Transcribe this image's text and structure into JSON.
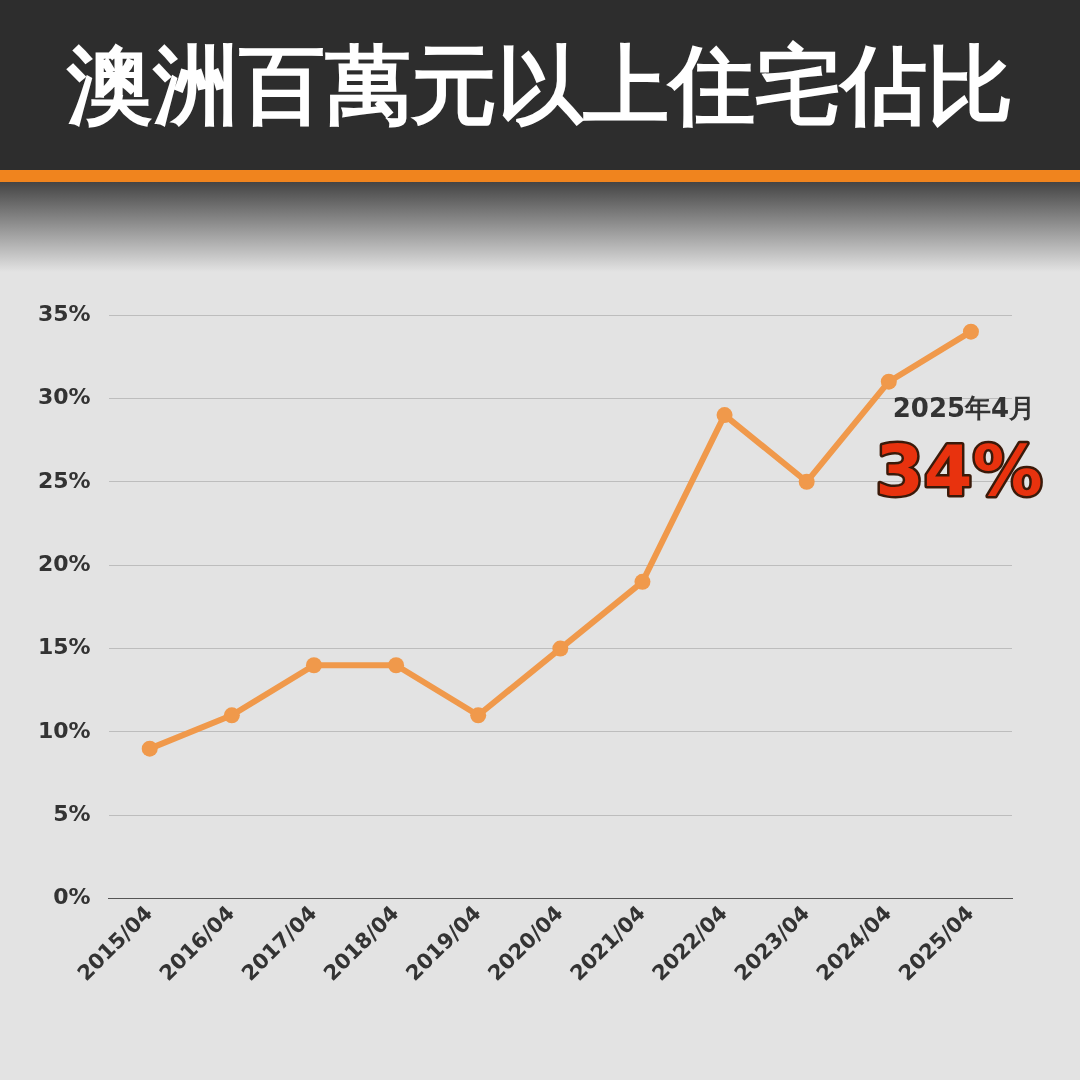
{
  "chart_data": {
    "type": "line",
    "title": "澳洲百萬元以上住宅佔比",
    "categories": [
      "2015/04",
      "2016/04",
      "2017/04",
      "2018/04",
      "2019/04",
      "2020/04",
      "2021/04",
      "2022/04",
      "2023/04",
      "2024/04",
      "2025/04"
    ],
    "series": [
      {
        "color": "#f0994b",
        "values": [
          9,
          11,
          14,
          14,
          11,
          15,
          19,
          29,
          25,
          31,
          34
        ]
      }
    ],
    "ylim": [
      0,
      35
    ],
    "yticks": [
      {
        "value": 0,
        "label": "0%"
      },
      {
        "value": 5,
        "label": "5%"
      },
      {
        "value": 10,
        "label": "10%"
      },
      {
        "value": 15,
        "label": "15%"
      },
      {
        "value": 20,
        "label": "20%"
      },
      {
        "value": 25,
        "label": "25%"
      },
      {
        "value": 30,
        "label": "30%"
      },
      {
        "value": 35,
        "label": "35%"
      }
    ],
    "grid": "y",
    "legend": false,
    "marker": "circle",
    "line_style": "solid",
    "annotations": [
      {
        "text": "2025年4月",
        "x": "2025/04",
        "y": 34
      },
      {
        "text": "34%",
        "x": "2025/04",
        "y": 34
      }
    ]
  }
}
